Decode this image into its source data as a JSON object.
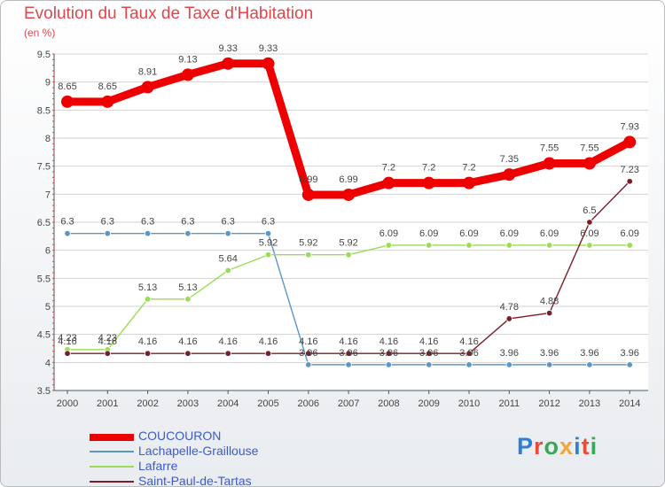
{
  "title": "Evolution du Taux de Taxe d'Habitation",
  "subtitle": "(en %)",
  "logo": "Proxiti",
  "chart_data": {
    "type": "line",
    "title": "Evolution du Taux de Taxe d'Habitation",
    "ylabel": "(en %)",
    "xlabel": "",
    "ylim": [
      3.5,
      9.5
    ],
    "yticks": [
      "3.5",
      "4",
      "4.5",
      "5",
      "5.5",
      "6",
      "6.5",
      "7",
      "7.5",
      "8",
      "8.5",
      "9",
      "9.5"
    ],
    "categories": [
      "2000",
      "2001",
      "2002",
      "2003",
      "2004",
      "2005",
      "2006",
      "2007",
      "2008",
      "2009",
      "2010",
      "2011",
      "2012",
      "2013",
      "2014"
    ],
    "series": [
      {
        "name": "COUCOURON",
        "color": "#ee0000",
        "values": [
          8.65,
          8.65,
          8.91,
          9.13,
          9.33,
          9.33,
          6.99,
          6.99,
          7.2,
          7.2,
          7.2,
          7.35,
          7.55,
          7.55,
          7.93
        ],
        "labels": [
          "8.65",
          "8.65",
          "8.91",
          "9.13",
          "9.33",
          "9.33",
          "6.99",
          "6.99",
          "7.2",
          "7.2",
          "7.2",
          "7.35",
          "7.55",
          "7.55",
          "7.93"
        ]
      },
      {
        "name": "Lachapelle-Graillouse",
        "color": "#5a96c8",
        "values": [
          6.3,
          6.3,
          6.3,
          6.3,
          6.3,
          6.3,
          3.96,
          3.96,
          3.96,
          3.96,
          3.96,
          3.96,
          3.96,
          3.96,
          3.96
        ],
        "labels": [
          "6.3",
          "6.3",
          "6.3",
          "6.3",
          "6.3",
          "6.3",
          "3.96",
          "3.96",
          "3.96",
          "3.96",
          "3.96",
          "3.96",
          "3.96",
          "3.96",
          "3.96"
        ]
      },
      {
        "name": "Lafarre",
        "color": "#99dd55",
        "values": [
          4.23,
          4.23,
          5.13,
          5.13,
          5.64,
          5.92,
          5.92,
          5.92,
          6.09,
          6.09,
          6.09,
          6.09,
          6.09,
          6.09,
          6.09
        ],
        "labels": [
          "4.23",
          "4.23",
          "5.13",
          "5.13",
          "5.64",
          "5.92",
          "5.92",
          "5.92",
          "6.09",
          "6.09",
          "6.09",
          "6.09",
          "6.09",
          "6.09",
          "6.09"
        ]
      },
      {
        "name": "Saint-Paul-de-Tartas",
        "color": "#7a1f2a",
        "values": [
          4.16,
          4.16,
          4.16,
          4.16,
          4.16,
          4.16,
          4.16,
          4.16,
          4.16,
          4.16,
          4.16,
          4.78,
          4.88,
          6.5,
          7.23
        ],
        "labels": [
          "4.16",
          "4.16",
          "4.16",
          "4.16",
          "4.16",
          "4.16",
          "4.16",
          "4.16",
          "4.16",
          "4.16",
          "4.16",
          "4.78",
          "4.88",
          "6.5",
          "7.23"
        ]
      }
    ]
  }
}
